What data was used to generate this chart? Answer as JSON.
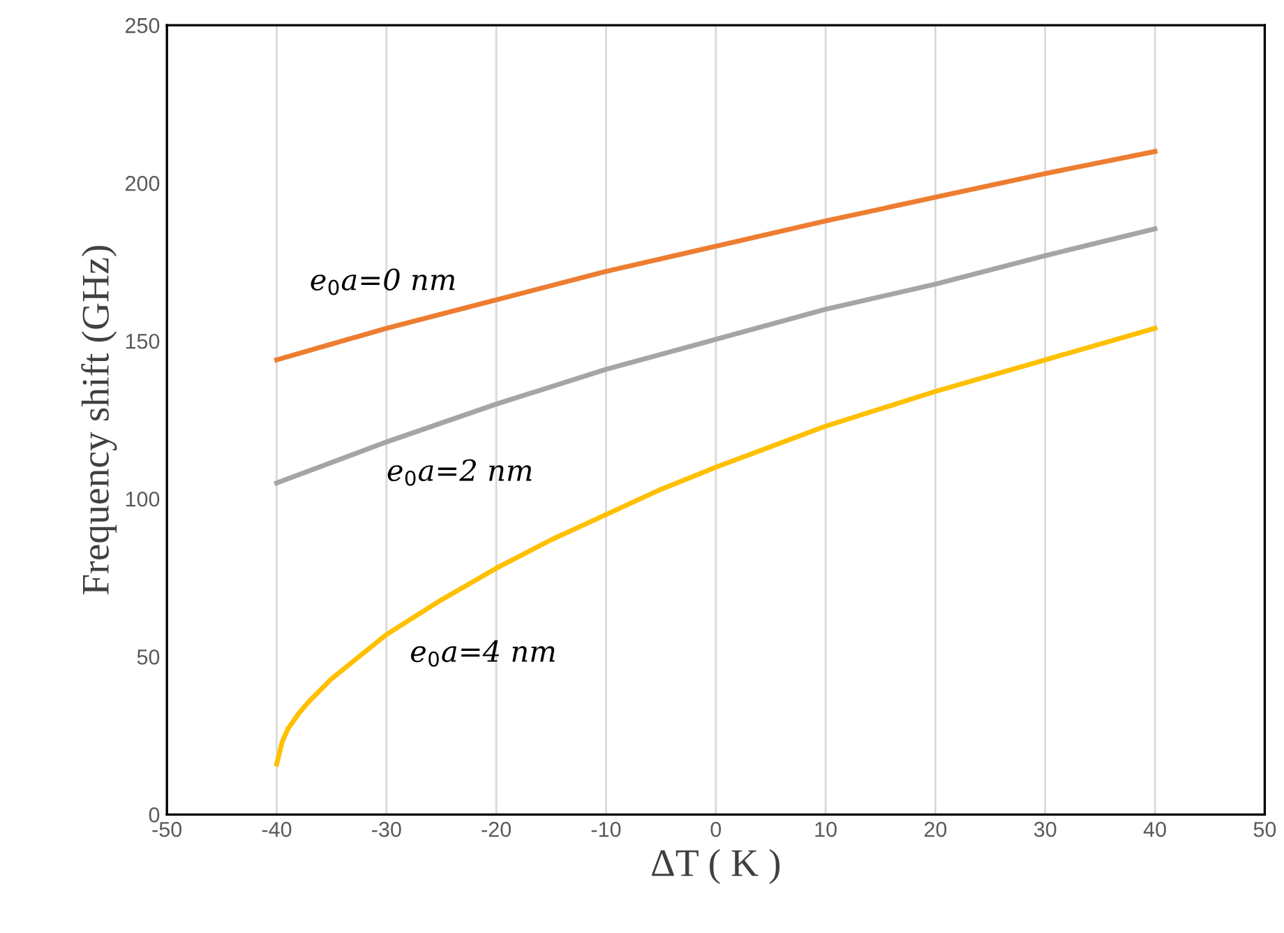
{
  "chart_data": {
    "type": "line",
    "xlabel": "ΔT ( K )",
    "ylabel": "Frequency shift (GHz)",
    "xlim": [
      -50,
      50
    ],
    "xticks": [
      -50,
      -40,
      -30,
      -20,
      -10,
      0,
      10,
      20,
      30,
      40,
      50
    ],
    "ylim": [
      0,
      250
    ],
    "yticks": [
      0,
      50,
      100,
      150,
      200,
      250
    ],
    "grid": "x",
    "marker": "none",
    "line_style": "solid",
    "legend": false,
    "series": [
      {
        "name": "e$_{0}$a=0 nm",
        "color": "#ed7d31",
        "x": [
          -40,
          -30,
          -20,
          -10,
          0,
          10,
          20,
          30,
          40
        ],
        "values": [
          144,
          154,
          163,
          172,
          180,
          188,
          195.5,
          203,
          210
        ]
      },
      {
        "name": "e$_{0}$a=2 nm",
        "color": "#a5a5a5",
        "x": [
          -40,
          -30,
          -20,
          -10,
          0,
          10,
          20,
          30,
          40
        ],
        "values": [
          105,
          118,
          130,
          141,
          150.5,
          160,
          168,
          177,
          185.5
        ]
      },
      {
        "name": "e$_{0}$a=4 nm",
        "color": "#ffc000",
        "x": [
          -40,
          -39.5,
          -39,
          -38,
          -37,
          -35,
          -32.5,
          -30,
          -25,
          -20,
          -15,
          -10,
          -5,
          0,
          10,
          20,
          30,
          40
        ],
        "values": [
          16,
          23,
          27,
          32,
          36,
          43,
          50,
          57,
          68,
          78,
          87,
          95,
          103,
          110,
          123,
          134,
          144,
          154
        ]
      }
    ]
  }
}
